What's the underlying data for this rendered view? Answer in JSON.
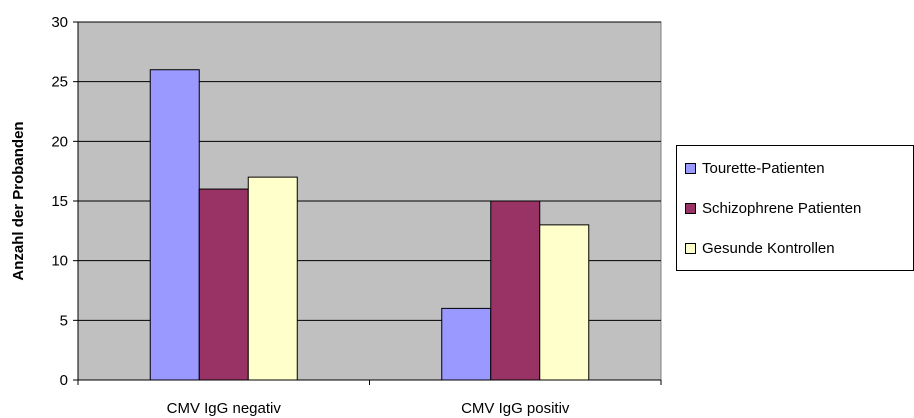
{
  "chart_data": {
    "type": "bar",
    "categories": [
      "CMV IgG negativ",
      "CMV IgG positiv"
    ],
    "series": [
      {
        "name": "Tourette-Patienten",
        "values": [
          26,
          6
        ],
        "color": "#9999ff"
      },
      {
        "name": "Schizophrene Patienten",
        "values": [
          16,
          15
        ],
        "color": "#993366"
      },
      {
        "name": "Gesunde Kontrollen",
        "values": [
          17,
          13
        ],
        "color": "#ffffcc"
      }
    ],
    "ylabel": "Anzahl der Probanden",
    "xlabel": "",
    "ylim": [
      0,
      30
    ],
    "yticks": [
      "0",
      "5",
      "10",
      "15",
      "20",
      "25",
      "30"
    ],
    "grid": true,
    "plot_background": "#c0c0c0",
    "legend_position": "right"
  }
}
